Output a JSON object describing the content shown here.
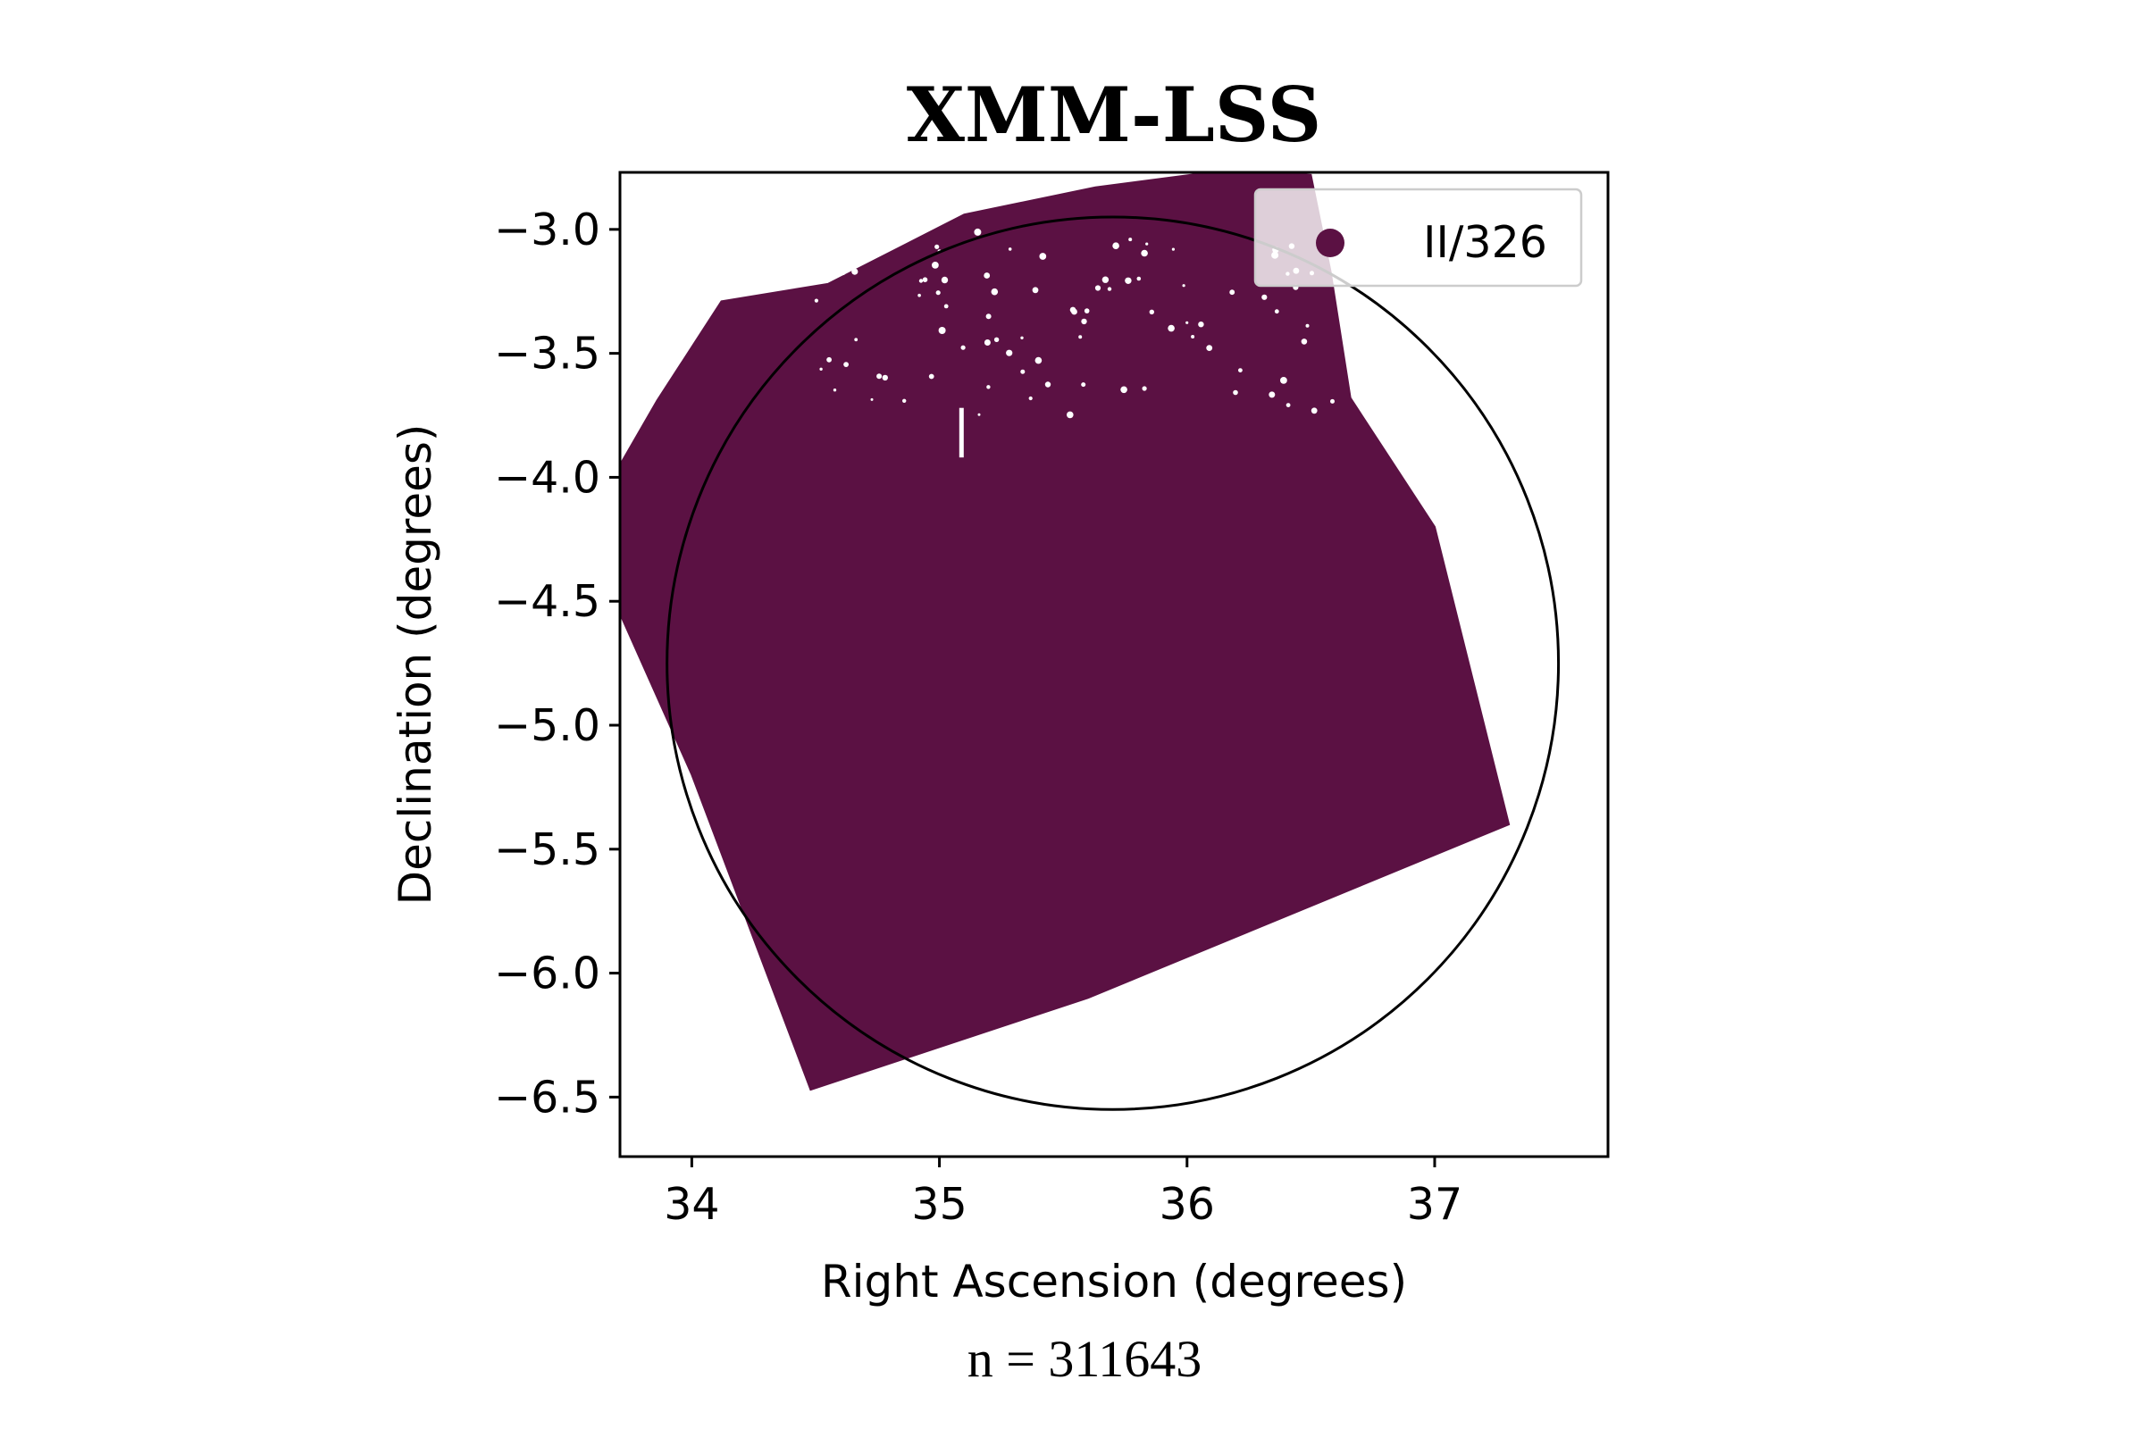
{
  "chart_data": {
    "type": "scatter",
    "title": "XMM-LSS",
    "xlabel": "Right Ascension (degrees)",
    "ylabel": "Declination (degrees)",
    "xlim": [
      33.71,
      37.7
    ],
    "ylim": [
      -6.74,
      -2.77
    ],
    "x_ticks": [
      {
        "value": 34,
        "label": "34"
      },
      {
        "value": 35,
        "label": "35"
      },
      {
        "value": 36,
        "label": "36"
      },
      {
        "value": 37,
        "label": "37"
      }
    ],
    "y_ticks": [
      {
        "value": -3.0,
        "label": "−3.0"
      },
      {
        "value": -3.5,
        "label": "−3.5"
      },
      {
        "value": -4.0,
        "label": "−4.0"
      },
      {
        "value": -4.5,
        "label": "−4.5"
      },
      {
        "value": -5.0,
        "label": "−5.0"
      },
      {
        "value": -5.5,
        "label": "−5.5"
      },
      {
        "value": -6.0,
        "label": "−6.0"
      },
      {
        "value": -6.5,
        "label": "−6.5"
      }
    ],
    "grid": false,
    "legend_position": "top-right",
    "series": [
      {
        "name": "II/326",
        "color": "#5b1143",
        "marker": "circle",
        "count": 311643,
        "footprint_outline": [
          [
            34.12,
            -3.29
          ],
          [
            34.55,
            -3.22
          ],
          [
            35.1,
            -2.94
          ],
          [
            35.63,
            -2.83
          ],
          [
            36.17,
            -2.76
          ],
          [
            36.5,
            -2.78
          ],
          [
            36.58,
            -3.17
          ],
          [
            36.66,
            -3.68
          ],
          [
            37.0,
            -4.2
          ],
          [
            37.3,
            -5.4
          ],
          [
            35.6,
            -6.1
          ],
          [
            34.48,
            -6.47
          ],
          [
            34.0,
            -5.2
          ],
          [
            33.71,
            -4.55
          ],
          [
            33.71,
            -3.95
          ],
          [
            33.86,
            -3.69
          ]
        ]
      }
    ],
    "circle": {
      "center_ra": 35.7,
      "center_dec": -4.75,
      "radius_deg": 1.8,
      "color": "#000000"
    }
  },
  "annotation": {
    "text": "n = 311643"
  }
}
